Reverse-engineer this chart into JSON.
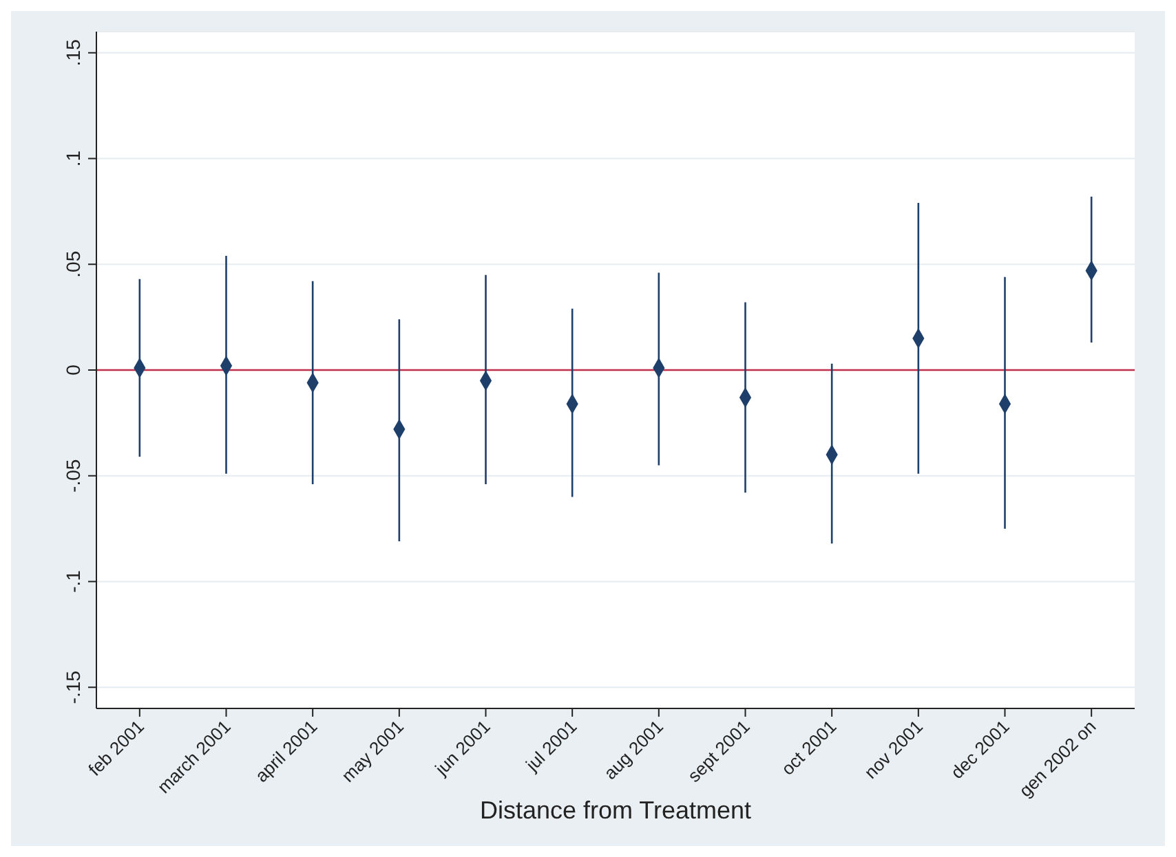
{
  "chart_data": {
    "type": "scatter",
    "xlabel": "Distance from Treatment",
    "categories": [
      "feb 2001",
      "march 2001",
      "april 2001",
      "may 2001",
      "jun 2001",
      "jul 2001",
      "aug 2001",
      "sept 2001",
      "oct 2001",
      "nov 2001",
      "dec 2001",
      "gen 2002 on"
    ],
    "series": [
      {
        "color": "#1f3f6b",
        "values": [
          0.001,
          0.002,
          -0.006,
          -0.028,
          -0.005,
          -0.016,
          0.001,
          -0.013,
          -0.04,
          0.015,
          -0.016,
          0.047
        ],
        "errors": [
          [
            -0.041,
            0.043
          ],
          [
            -0.049,
            0.054
          ],
          [
            -0.054,
            0.042
          ],
          [
            -0.081,
            0.024
          ],
          [
            -0.054,
            0.045
          ],
          [
            -0.06,
            0.029
          ],
          [
            -0.045,
            0.046
          ],
          [
            -0.058,
            0.032
          ],
          [
            -0.082,
            0.003
          ],
          [
            -0.049,
            0.079
          ],
          [
            -0.075,
            0.044
          ],
          [
            0.013,
            0.082
          ]
        ]
      }
    ],
    "ylim": [
      -0.16,
      0.16
    ],
    "yticks": [
      {
        "value": -0.15,
        "label": "-.15"
      },
      {
        "value": -0.1,
        "label": "-.1"
      },
      {
        "value": -0.05,
        "label": "-.05"
      },
      0,
      {
        "value": 0.05,
        "label": ".05"
      },
      {
        "value": 0.1,
        "label": ".1"
      },
      {
        "value": 0.15,
        "label": ".15"
      }
    ],
    "ref_lines": [
      {
        "axis": "y",
        "value": 0,
        "color": "#c0304a"
      }
    ],
    "grid": "y",
    "marker": "diamond"
  }
}
